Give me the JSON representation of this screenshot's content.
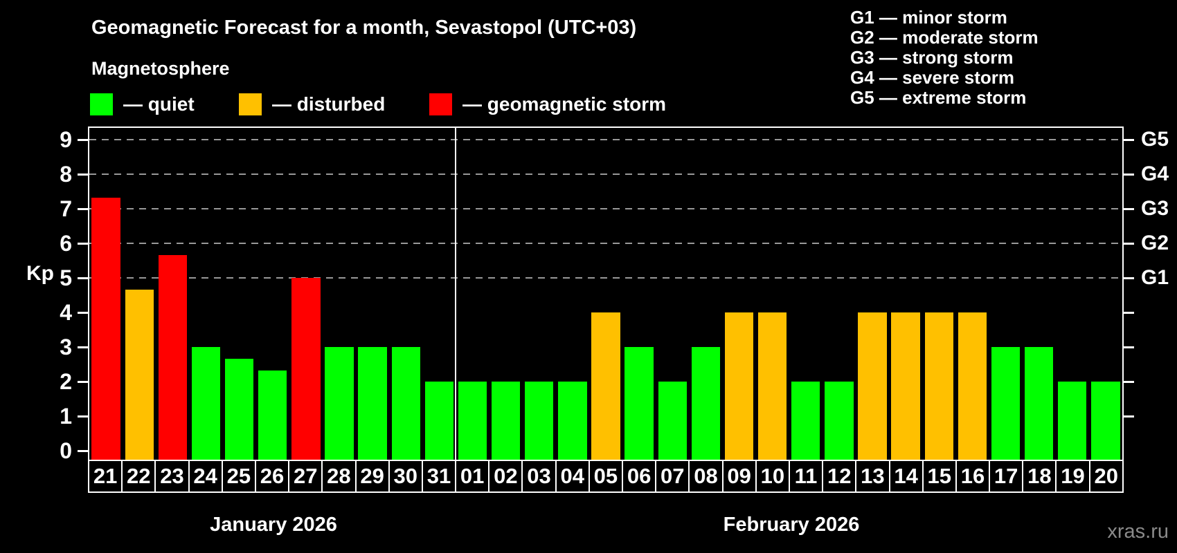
{
  "header": {
    "title": "Geomagnetic Forecast for a month, Sevastopol (UTC+03)",
    "subtitle": "Magnetosphere"
  },
  "legend": {
    "quiet": "— quiet",
    "disturbed": "— disturbed",
    "storm": "— geomagnetic storm"
  },
  "g_legend": {
    "line1": "G1 — minor storm",
    "line2": "G2 — moderate storm",
    "line3": "G3 — strong storm",
    "line4": "G4 — severe storm",
    "line5": "G5 — extreme storm"
  },
  "axis": {
    "ylabel": "Kp",
    "yticks": [
      0,
      1,
      2,
      3,
      4,
      5,
      6,
      7,
      8,
      9
    ],
    "right_labels": {
      "5": "G1",
      "6": "G2",
      "7": "G3",
      "8": "G4",
      "9": "G5"
    }
  },
  "months": [
    {
      "label": "January 2026",
      "days": 11
    },
    {
      "label": "February 2026",
      "days": 20
    }
  ],
  "watermark": "xras.ru",
  "colors": {
    "quiet": "#00ff00",
    "disturbed": "#ffc000",
    "storm": "#ff0000",
    "background": "#000000",
    "text": "#ffffff",
    "grid": "#999999",
    "watermark": "#8a8a8a"
  },
  "chart_data": {
    "type": "bar",
    "title": "Geomagnetic Forecast for a month, Sevastopol (UTC+03)",
    "ylabel": "Kp",
    "ylim": [
      0,
      9.4
    ],
    "gridlines": [
      5,
      6,
      7,
      8,
      9
    ],
    "legend_position": "top",
    "categories": [
      "21",
      "22",
      "23",
      "24",
      "25",
      "26",
      "27",
      "28",
      "29",
      "30",
      "31",
      "01",
      "02",
      "03",
      "04",
      "05",
      "06",
      "07",
      "08",
      "09",
      "10",
      "11",
      "12",
      "13",
      "14",
      "15",
      "16",
      "17",
      "18",
      "19",
      "20"
    ],
    "values": [
      7.33,
      4.67,
      5.67,
      3,
      2.67,
      2.33,
      5,
      3,
      3,
      3,
      2,
      2,
      2,
      2,
      2,
      4,
      3,
      2,
      3,
      4,
      4,
      2,
      2,
      4,
      4,
      4,
      4,
      3,
      3,
      2,
      2
    ],
    "status": [
      "storm",
      "disturbed",
      "storm",
      "quiet",
      "quiet",
      "quiet",
      "storm",
      "quiet",
      "quiet",
      "quiet",
      "quiet",
      "quiet",
      "quiet",
      "quiet",
      "quiet",
      "disturbed",
      "quiet",
      "quiet",
      "quiet",
      "disturbed",
      "disturbed",
      "quiet",
      "quiet",
      "disturbed",
      "disturbed",
      "disturbed",
      "disturbed",
      "quiet",
      "quiet",
      "quiet",
      "quiet"
    ]
  }
}
